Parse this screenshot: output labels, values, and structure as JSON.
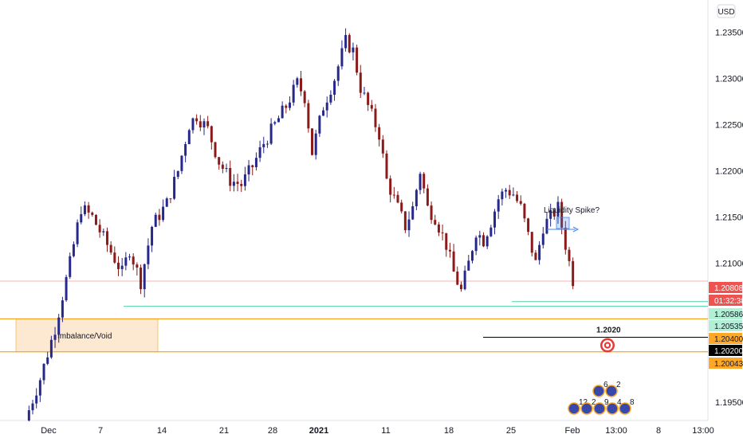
{
  "chart_data": {
    "type": "candlestick",
    "symbol_currency": "USD",
    "x_tick_labels": [
      "Dec",
      "7",
      "14",
      "21",
      "28",
      "2021",
      "11",
      "18",
      "25",
      "Feb",
      "13:00",
      "8",
      "13:00"
    ],
    "y_tick_labels": [
      "1.23500",
      "1.23000",
      "1.22500",
      "1.22000",
      "1.21500",
      "1.21000",
      "1.19500"
    ],
    "ylim": [
      1.193,
      1.2385
    ],
    "grid": false,
    "price_tags": [
      {
        "label": "1.20808",
        "price": 1.20808,
        "color": "#ef5350",
        "text_color": "#ffffff"
      },
      {
        "label": "01:32:38",
        "price": 1.207,
        "color": "#ef5350",
        "text_color": "#ffffff"
      },
      {
        "label": "1.20586",
        "price": 1.20586,
        "color": "#b2f0d6",
        "text_color": "#131722"
      },
      {
        "label": "1.20535",
        "price": 1.20535,
        "color": "#b2f0d6",
        "text_color": "#131722"
      },
      {
        "label": "1.20400",
        "price": 1.204,
        "color": "#ffa726",
        "text_color": "#131722"
      },
      {
        "label": "1.20200",
        "price": 1.202,
        "color": "#000000",
        "text_color": "#ffffff"
      },
      {
        "label": "1.20043",
        "price": 1.20043,
        "color": "#ffa726",
        "text_color": "#131722"
      }
    ],
    "annotations": {
      "imbalance_label": "Imbalance/Void",
      "imbalance_top": 1.204,
      "imbalance_bottom": 1.20043,
      "target_label": "1.2020",
      "target_price": 1.202,
      "liquidity_label": "Liquidity Spike?",
      "support_line_1": 1.20586,
      "support_line_2": 1.20535,
      "current_price": 1.20808
    },
    "event_badges": [
      "6",
      "2",
      "12",
      "2",
      "9",
      "4",
      "8"
    ],
    "colors": {
      "up": "#26288a",
      "down": "#8b1a1a",
      "background": "#ffffff",
      "imbalance_fill": "#fde9d2",
      "imbalance_border": "#f5a623",
      "support": "#4dd0a8",
      "target": "#e53935"
    },
    "anchors": [
      [
        0,
        1.193
      ],
      [
        4,
        1.1975
      ],
      [
        8,
        1.203
      ],
      [
        12,
        1.21
      ],
      [
        15,
        1.216
      ],
      [
        18,
        1.215
      ],
      [
        22,
        1.212
      ],
      [
        26,
        1.209
      ],
      [
        28,
        1.2115
      ],
      [
        31,
        1.208
      ],
      [
        34,
        1.214
      ],
      [
        38,
        1.2165
      ],
      [
        41,
        1.22
      ],
      [
        44,
        1.225
      ],
      [
        46,
        1.226
      ],
      [
        49,
        1.2245
      ],
      [
        52,
        1.221
      ],
      [
        55,
        1.219
      ],
      [
        58,
        1.2185
      ],
      [
        61,
        1.2205
      ],
      [
        64,
        1.223
      ],
      [
        67,
        1.225
      ],
      [
        70,
        1.227
      ],
      [
        73,
        1.2295
      ],
      [
        75,
        1.228
      ],
      [
        77,
        1.222
      ],
      [
        80,
        1.227
      ],
      [
        83,
        1.23
      ],
      [
        86,
        1.234
      ],
      [
        88,
        1.233
      ],
      [
        90,
        1.229
      ],
      [
        92,
        1.227
      ],
      [
        95,
        1.224
      ],
      [
        97,
        1.219
      ],
      [
        99,
        1.217
      ],
      [
        102,
        1.214
      ],
      [
        104,
        1.216
      ],
      [
        106,
        1.22
      ],
      [
        108,
        1.216
      ],
      [
        110,
        1.215
      ],
      [
        113,
        1.212
      ],
      [
        115,
        1.209
      ],
      [
        117,
        1.207
      ],
      [
        119,
        1.21
      ],
      [
        121,
        1.2135
      ],
      [
        123,
        1.2125
      ],
      [
        125,
        1.2145
      ],
      [
        127,
        1.217
      ],
      [
        129,
        1.218
      ],
      [
        131,
        1.2175
      ],
      [
        133,
        1.216
      ],
      [
        135,
        1.213
      ],
      [
        137,
        1.21
      ],
      [
        139,
        1.214
      ],
      [
        141,
        1.215
      ],
      [
        143,
        1.216
      ],
      [
        145,
        1.212
      ],
      [
        147,
        1.2082
      ]
    ]
  }
}
